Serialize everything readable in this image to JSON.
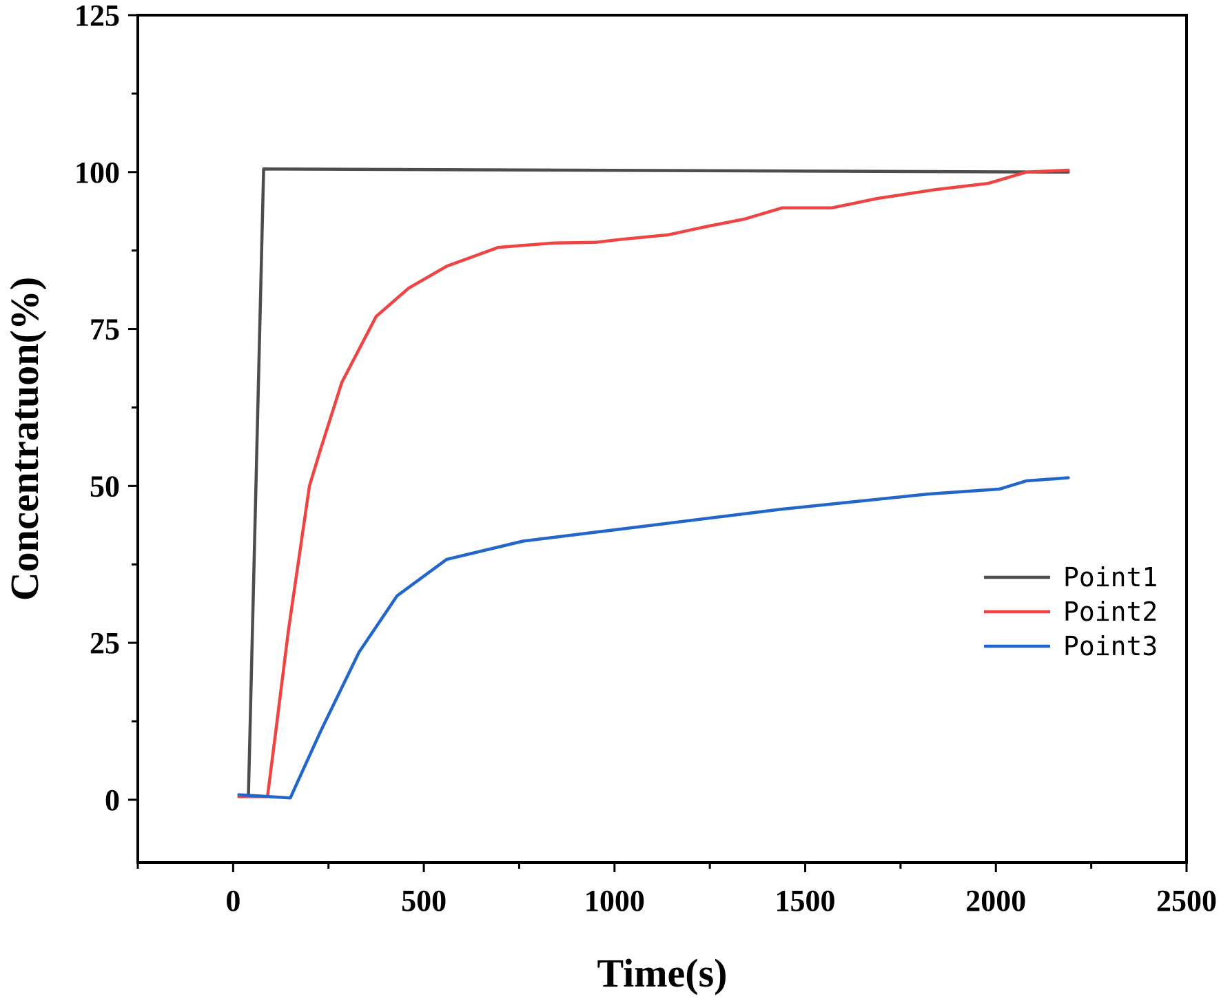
{
  "chart_data": {
    "type": "line",
    "title": "",
    "xlabel": "Time(s)",
    "ylabel": "Concentratuon(%)",
    "xlim": [
      -250,
      2500
    ],
    "ylim": [
      -10,
      125
    ],
    "x_ticks": [
      0,
      500,
      1000,
      1500,
      2000,
      2500
    ],
    "x_tick_labels": [
      "0",
      "500",
      "1000",
      "1500",
      "2000",
      "2500"
    ],
    "x_minor_ticks": [
      -250,
      250,
      750,
      1250,
      1750,
      2250
    ],
    "y_ticks": [
      0,
      25,
      50,
      75,
      100,
      125
    ],
    "y_tick_labels": [
      "0",
      "25",
      "50",
      "75",
      "100",
      "125"
    ],
    "y_minor_ticks": [
      12.5,
      37.5,
      62.5,
      87.5,
      112.5
    ],
    "grid": false,
    "legend_position": "right",
    "series": [
      {
        "name": "Point1",
        "color": "#4d4d4d",
        "x": [
          15,
          40,
          80,
          2190
        ],
        "y": [
          0.5,
          0.5,
          100.5,
          100
        ]
      },
      {
        "name": "Point2",
        "color": "#ee4444",
        "x": [
          15,
          90,
          110,
          145,
          200,
          230,
          285,
          375,
          460,
          560,
          695,
          840,
          950,
          1020,
          1140,
          1240,
          1340,
          1440,
          1570,
          1690,
          1840,
          1980,
          2080,
          2190
        ],
        "y": [
          0.5,
          0.5,
          10,
          27,
          50,
          56,
          66.5,
          77,
          81.5,
          85,
          88,
          88.7,
          88.8,
          89.3,
          90,
          91.3,
          92.5,
          94.3,
          94.3,
          95.8,
          97.2,
          98.2,
          100,
          100.3
        ]
      },
      {
        "name": "Point3",
        "color": "#2266cc",
        "x": [
          15,
          150,
          170,
          230,
          330,
          430,
          560,
          760,
          1000,
          1160,
          1440,
          1600,
          1820,
          2010,
          2080,
          2190
        ],
        "y": [
          0.8,
          0.3,
          3,
          11,
          23.5,
          32.5,
          38.3,
          41.2,
          43,
          44.2,
          46.3,
          47.3,
          48.7,
          49.5,
          50.8,
          51.3
        ]
      }
    ]
  }
}
